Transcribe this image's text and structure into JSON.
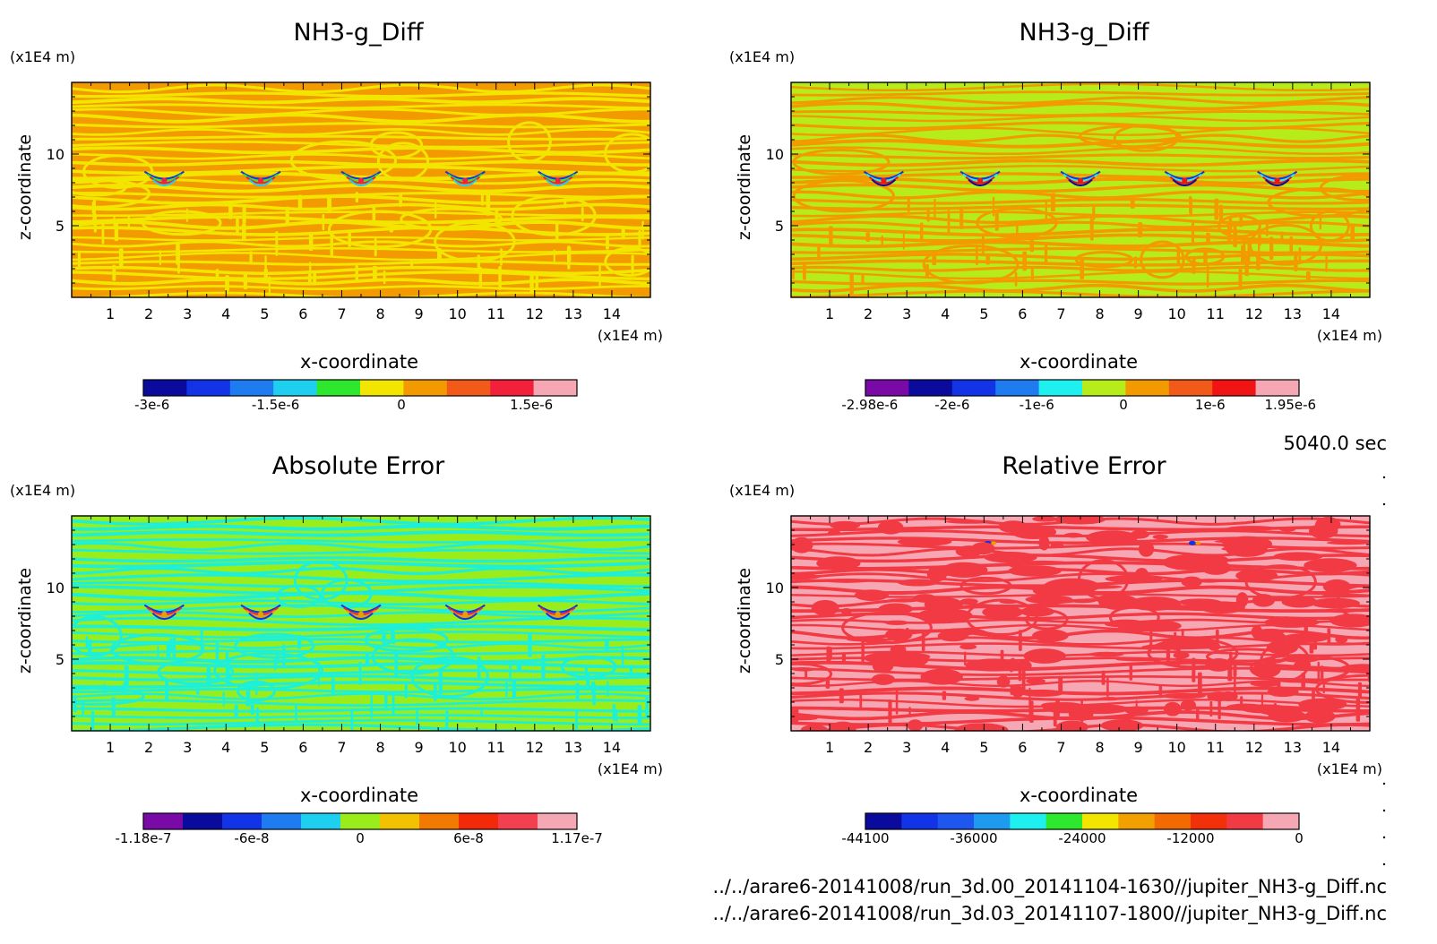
{
  "time_label": "5040.0 sec",
  "files": [
    "../../arare6-20141008/run_3d.00_20141104-1630//jupiter_NH3-g_Diff.nc",
    "../../arare6-20141008/run_3d.03_20141107-1800//jupiter_NH3-g_Diff.nc"
  ],
  "chart_data": [
    {
      "type": "heatmap",
      "title": "NH3-g_Diff",
      "xlabel": "x-coordinate",
      "x_unit": "(x1E4 m)",
      "ylabel": "z-coordinate",
      "y_unit": "(x1E4 m)",
      "xlim": [
        0,
        15
      ],
      "ylim": [
        0,
        15
      ],
      "x_ticks": [
        "1",
        "2",
        "3",
        "4",
        "5",
        "6",
        "7",
        "8",
        "9",
        "10",
        "11",
        "12",
        "13",
        "14"
      ],
      "y_ticks": [
        "5",
        "10"
      ],
      "colorbar": {
        "colors": [
          "#0a0a9c",
          "#1234e6",
          "#1e7cf0",
          "#1ecff0",
          "#2ee82e",
          "#f2e600",
          "#f29a00",
          "#f25a1a",
          "#f2203a",
          "#f5a8b4"
        ],
        "tick_labels": [
          "-3e-6",
          "-1.5e-6",
          "0",
          "1.5e-6"
        ]
      },
      "field": {
        "background": "#f29a00",
        "band": "#f2e600",
        "blob_colors": [
          "#1234e6",
          "#2ee82e",
          "#f2203a",
          "#1ecff0"
        ]
      }
    },
    {
      "type": "heatmap",
      "title": "NH3-g_Diff",
      "xlabel": "x-coordinate",
      "x_unit": "(x1E4 m)",
      "ylabel": "z-coordinate",
      "y_unit": "(x1E4 m)",
      "xlim": [
        0,
        15
      ],
      "ylim": [
        0,
        15
      ],
      "x_ticks": [
        "1",
        "2",
        "3",
        "4",
        "5",
        "6",
        "7",
        "8",
        "9",
        "10",
        "11",
        "12",
        "13",
        "14"
      ],
      "y_ticks": [
        "5",
        "10"
      ],
      "colorbar": {
        "colors": [
          "#7a0aa8",
          "#0a0a9c",
          "#1234e6",
          "#1e7cf0",
          "#1ef0f0",
          "#b6ec1a",
          "#f29a00",
          "#f25a1a",
          "#f21414",
          "#f5a8b4"
        ],
        "tick_labels": [
          "-2.98e-6",
          "-2e-6",
          "-1e-6",
          "0",
          "1e-6",
          "1.95e-6"
        ]
      },
      "field": {
        "background": "#b6ec1a",
        "band": "#f29a00",
        "blob_colors": [
          "#1234e6",
          "#1ef0f0",
          "#f21414",
          "#0a0a9c"
        ]
      }
    },
    {
      "type": "heatmap",
      "title": "Absolute Error",
      "xlabel": "x-coordinate",
      "x_unit": "(x1E4 m)",
      "ylabel": "z-coordinate",
      "y_unit": "(x1E4 m)",
      "xlim": [
        0,
        15
      ],
      "ylim": [
        0,
        15
      ],
      "x_ticks": [
        "1",
        "2",
        "3",
        "4",
        "5",
        "6",
        "7",
        "8",
        "9",
        "10",
        "11",
        "12",
        "13",
        "14"
      ],
      "y_ticks": [
        "5",
        "10"
      ],
      "colorbar": {
        "colors": [
          "#7a0aa8",
          "#0a0a9c",
          "#1234e6",
          "#1e7cf0",
          "#1ecff0",
          "#9aec1a",
          "#f2c200",
          "#f27a00",
          "#f22a0a",
          "#f24050",
          "#f5a8b4"
        ],
        "tick_labels": [
          "-1.18e-7",
          "-6e-8",
          "0",
          "6e-8",
          "1.17e-7"
        ]
      },
      "field": {
        "background": "#9aec1a",
        "band": "#1ef0d8",
        "blob_colors": [
          "#1234e6",
          "#f2203a",
          "#f29a00"
        ]
      }
    },
    {
      "type": "heatmap",
      "title": "Relative Error",
      "xlabel": "x-coordinate",
      "x_unit": "(x1E4 m)",
      "ylabel": "z-coordinate",
      "y_unit": "(x1E4 m)",
      "xlim": [
        0,
        15
      ],
      "ylim": [
        0,
        15
      ],
      "x_ticks": [
        "1",
        "2",
        "3",
        "4",
        "5",
        "6",
        "7",
        "8",
        "9",
        "10",
        "11",
        "12",
        "13",
        "14"
      ],
      "y_ticks": [
        "5",
        "10"
      ],
      "colorbar": {
        "colors": [
          "#0a0a9c",
          "#1234e6",
          "#1e56f0",
          "#1e9af0",
          "#1ef0f0",
          "#2ee82e",
          "#f2e600",
          "#f2a000",
          "#f26a00",
          "#f2300a",
          "#f23a44",
          "#f5a8b4"
        ],
        "tick_labels": [
          "-44100",
          "-36000",
          "-24000",
          "-12000",
          "0"
        ]
      },
      "field": {
        "background": "#f5a8b4",
        "band": "#f23a44",
        "blob_colors": [
          "#1234e6",
          "#f29a00"
        ]
      }
    }
  ]
}
